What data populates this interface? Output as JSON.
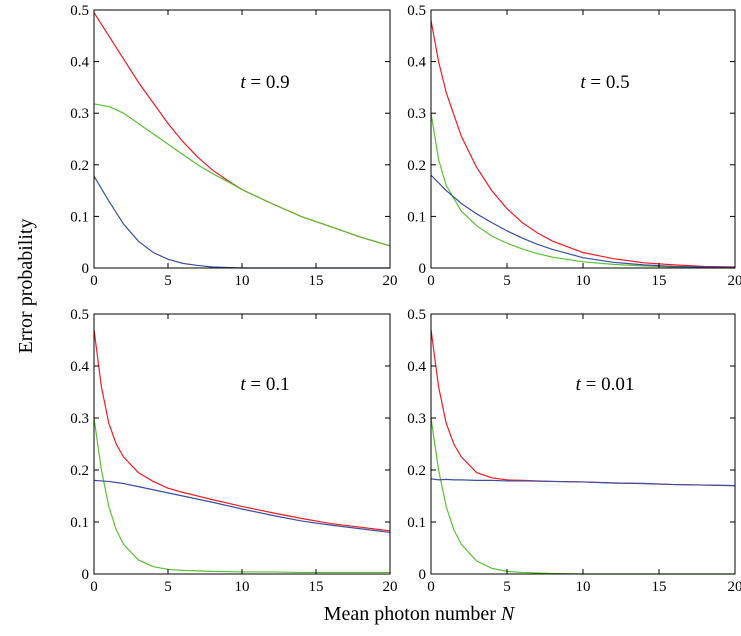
{
  "figure": {
    "ylabel": "Error probability",
    "xlabel": "Mean photon number N"
  },
  "colors": {
    "red": "#ee1c24",
    "green": "#5cbf35",
    "blue": "#3a4fa0"
  },
  "chart_data": [
    {
      "type": "line",
      "annotation_prefix": "t = ",
      "annotation_value": "0.9",
      "xlim": [
        0,
        20
      ],
      "ylim": [
        0,
        0.5
      ],
      "xticks": [
        "0",
        "5",
        "10",
        "15",
        "20"
      ],
      "yticks": [
        "0",
        "0.1",
        "0.2",
        "0.3",
        "0.4",
        "0.5"
      ],
      "grid": false,
      "x": [
        0,
        1,
        2,
        3,
        4,
        5,
        6,
        7,
        8,
        9,
        10,
        12,
        14,
        16,
        18,
        20
      ],
      "series": [
        {
          "color": "red",
          "values": [
            0.495,
            0.45,
            0.405,
            0.36,
            0.32,
            0.28,
            0.245,
            0.215,
            0.19,
            0.17,
            0.152,
            0.125,
            0.1,
            0.08,
            0.06,
            0.043
          ]
        },
        {
          "color": "green",
          "values": [
            0.318,
            0.313,
            0.3,
            0.28,
            0.26,
            0.24,
            0.22,
            0.2,
            0.183,
            0.168,
            0.152,
            0.125,
            0.1,
            0.08,
            0.06,
            0.043
          ]
        },
        {
          "color": "blue",
          "values": [
            0.178,
            0.13,
            0.085,
            0.052,
            0.03,
            0.017,
            0.009,
            0.005,
            0.002,
            0.001,
            0.0,
            0.0,
            0.0,
            0.0,
            0.0,
            0.0
          ]
        }
      ]
    },
    {
      "type": "line",
      "annotation_prefix": "t = ",
      "annotation_value": "0.5",
      "xlim": [
        0,
        20
      ],
      "ylim": [
        0,
        0.5
      ],
      "xticks": [
        "0",
        "5",
        "10",
        "15",
        "20"
      ],
      "yticks": [
        "0",
        "0.1",
        "0.2",
        "0.3",
        "0.4",
        "0.5"
      ],
      "grid": false,
      "x": [
        0,
        0.5,
        1,
        2,
        3,
        4,
        5,
        6,
        7,
        8,
        10,
        12,
        14,
        16,
        18,
        20
      ],
      "series": [
        {
          "color": "red",
          "values": [
            0.48,
            0.4,
            0.34,
            0.255,
            0.195,
            0.15,
            0.115,
            0.088,
            0.068,
            0.052,
            0.03,
            0.018,
            0.01,
            0.006,
            0.003,
            0.002
          ]
        },
        {
          "color": "green",
          "values": [
            0.3,
            0.21,
            0.16,
            0.11,
            0.082,
            0.062,
            0.048,
            0.037,
            0.028,
            0.021,
            0.012,
            0.007,
            0.004,
            0.002,
            0.001,
            0.0
          ]
        },
        {
          "color": "blue",
          "values": [
            0.18,
            0.165,
            0.15,
            0.125,
            0.105,
            0.088,
            0.072,
            0.058,
            0.046,
            0.036,
            0.02,
            0.011,
            0.006,
            0.003,
            0.002,
            0.001
          ]
        }
      ]
    },
    {
      "type": "line",
      "annotation_prefix": "t = ",
      "annotation_value": "0.1",
      "xlim": [
        0,
        20
      ],
      "ylim": [
        0,
        0.5
      ],
      "xticks": [
        "0",
        "5",
        "10",
        "15",
        "20"
      ],
      "yticks": [
        "0",
        "0.1",
        "0.2",
        "0.3",
        "0.4",
        "0.5"
      ],
      "grid": false,
      "x": [
        0,
        0.5,
        1,
        1.5,
        2,
        3,
        4,
        5,
        6,
        8,
        10,
        12,
        14,
        16,
        18,
        20
      ],
      "series": [
        {
          "color": "red",
          "values": [
            0.47,
            0.36,
            0.29,
            0.25,
            0.225,
            0.195,
            0.178,
            0.165,
            0.157,
            0.143,
            0.13,
            0.118,
            0.107,
            0.097,
            0.09,
            0.083
          ]
        },
        {
          "color": "green",
          "values": [
            0.3,
            0.2,
            0.13,
            0.085,
            0.057,
            0.027,
            0.014,
            0.009,
            0.007,
            0.005,
            0.004,
            0.004,
            0.003,
            0.003,
            0.003,
            0.003
          ]
        },
        {
          "color": "blue",
          "values": [
            0.18,
            0.179,
            0.178,
            0.176,
            0.174,
            0.168,
            0.162,
            0.156,
            0.15,
            0.138,
            0.125,
            0.113,
            0.102,
            0.094,
            0.087,
            0.08
          ]
        }
      ]
    },
    {
      "type": "line",
      "annotation_prefix": "t = ",
      "annotation_value": "0.01",
      "xlim": [
        0,
        20
      ],
      "ylim": [
        0,
        0.5
      ],
      "xticks": [
        "0",
        "5",
        "10",
        "15",
        "20"
      ],
      "yticks": [
        "0",
        "0.1",
        "0.2",
        "0.3",
        "0.4",
        "0.5"
      ],
      "grid": false,
      "x": [
        0,
        0.5,
        1,
        1.5,
        2,
        3,
        4,
        5,
        6,
        8,
        10,
        12,
        14,
        16,
        18,
        20
      ],
      "series": [
        {
          "color": "red",
          "values": [
            0.47,
            0.36,
            0.29,
            0.25,
            0.225,
            0.195,
            0.185,
            0.181,
            0.18,
            0.178,
            0.177,
            0.175,
            0.174,
            0.172,
            0.171,
            0.17
          ]
        },
        {
          "color": "green",
          "values": [
            0.3,
            0.2,
            0.13,
            0.085,
            0.057,
            0.025,
            0.011,
            0.005,
            0.003,
            0.001,
            0.0,
            0.0,
            0.0,
            0.0,
            0.0,
            0.0
          ]
        },
        {
          "color": "blue",
          "values": [
            0.183,
            0.181,
            0.182,
            0.181,
            0.181,
            0.18,
            0.18,
            0.179,
            0.179,
            0.178,
            0.177,
            0.175,
            0.174,
            0.172,
            0.171,
            0.17
          ]
        }
      ]
    }
  ]
}
